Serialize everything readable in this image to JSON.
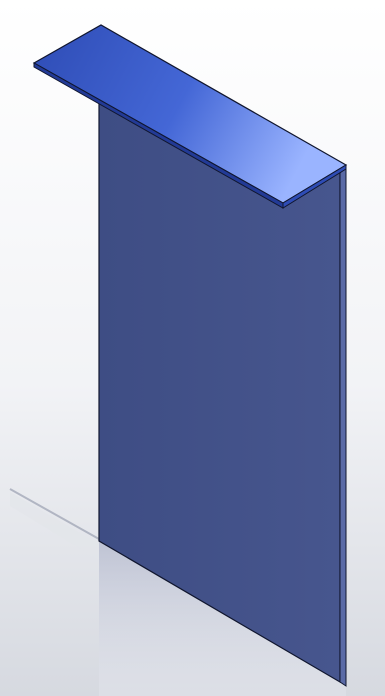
{
  "viewport": {
    "model": "sheet-metal-bracket"
  },
  "colors": {
    "background_top": "#ffffff",
    "background_bottom": "#d6d9e0",
    "floor_reflection": "#b8bdd0",
    "panel_face": "#3e4d84",
    "panel_face_light": "#47568e",
    "panel_edge": "#1d2550",
    "panel_thickness": "#5a6aa6",
    "flange_top_dark": "#2e4cb5",
    "flange_top_light": "#9ab4ff",
    "flange_edge": "#223a96",
    "outline": "#10162e"
  }
}
